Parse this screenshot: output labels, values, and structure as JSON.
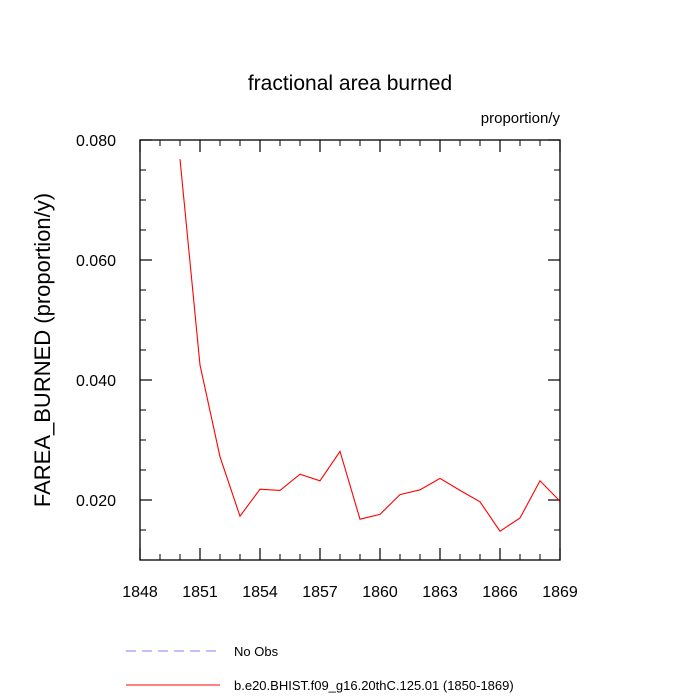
{
  "chart_data": {
    "type": "line",
    "title": "fractional area burned",
    "units_label": "proportion/y",
    "ylabel": "FAREA_BURNED  (proportion/y)",
    "xlabel": "",
    "xlim": [
      1848,
      1869
    ],
    "ylim": [
      0.01,
      0.08
    ],
    "x_ticks": [
      1848,
      1851,
      1854,
      1857,
      1860,
      1863,
      1866,
      1869
    ],
    "x_tick_labels": [
      "1848",
      "1851",
      "1854",
      "1857",
      "1860",
      "1863",
      "1866",
      "1869"
    ],
    "x_minor_step": 1,
    "y_ticks": [
      0.02,
      0.04,
      0.06,
      0.08
    ],
    "y_tick_labels": [
      "0.020",
      "0.040",
      "0.060",
      "0.080"
    ],
    "y_minor_step": 0.005,
    "grid": false,
    "legend_position": "bottom",
    "series": [
      {
        "name": "No Obs",
        "color": "#8080ff",
        "dash": "dashed",
        "x": [],
        "y": []
      },
      {
        "name": "b.e20.BHIST.f09_g16.20thC.125.01 (1850-1869)",
        "color": "#ff0000",
        "dash": "solid",
        "x": [
          1850,
          1851,
          1852,
          1853,
          1854,
          1855,
          1856,
          1857,
          1858,
          1859,
          1860,
          1861,
          1862,
          1863,
          1864,
          1865,
          1866,
          1867,
          1868,
          1869
        ],
        "y": [
          0.0768,
          0.0425,
          0.0272,
          0.0173,
          0.0218,
          0.0216,
          0.0243,
          0.0232,
          0.0281,
          0.0168,
          0.0176,
          0.0209,
          0.0217,
          0.0236,
          0.0216,
          0.0197,
          0.0148,
          0.017,
          0.0232,
          0.0198
        ]
      }
    ]
  }
}
